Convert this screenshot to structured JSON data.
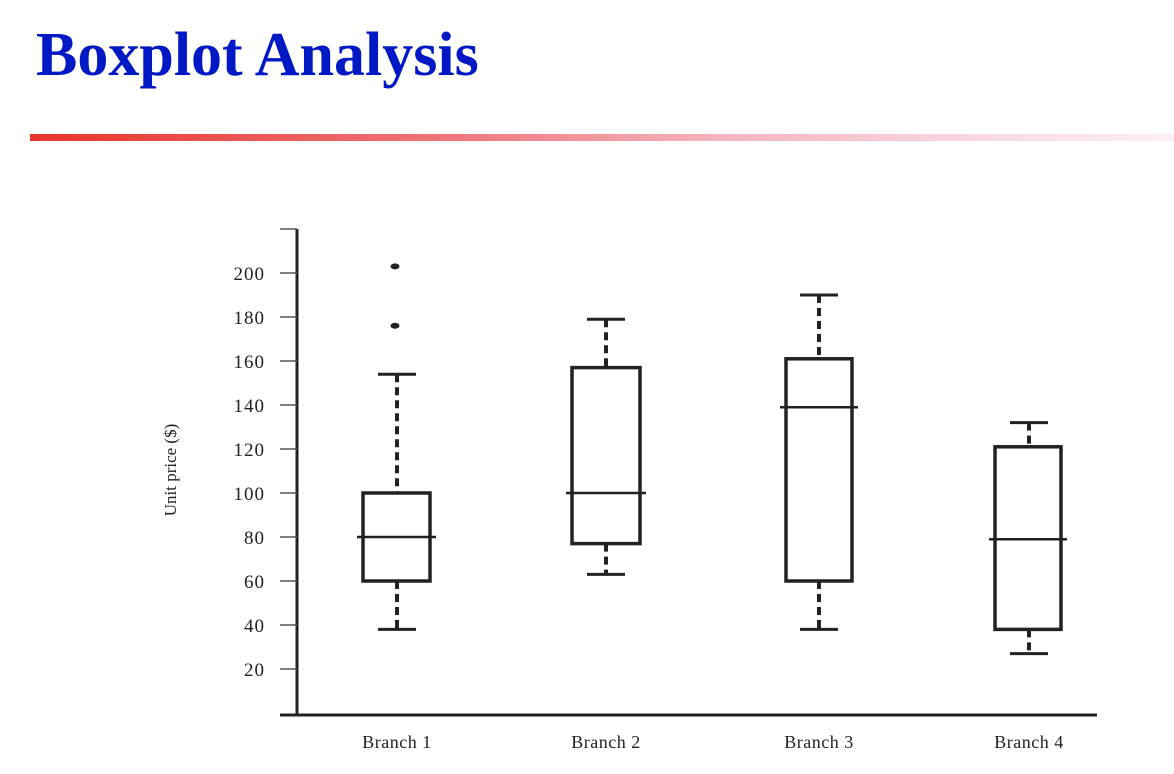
{
  "slide": {
    "title": "Boxplot Analysis",
    "title_color": "#0019c4",
    "rule_colors": [
      "#e8352b",
      "#fdeef5"
    ]
  },
  "chart_data": {
    "type": "boxplot",
    "title": "",
    "xlabel": "",
    "ylabel": "Unit price ($)",
    "ylim": [
      0,
      220
    ],
    "yticks": [
      20,
      40,
      60,
      80,
      100,
      120,
      140,
      160,
      180,
      200
    ],
    "grid": false,
    "categories": [
      "Branch 1",
      "Branch 2",
      "Branch 3",
      "Branch 4"
    ],
    "series": [
      {
        "name": "Branch 1",
        "whisker_low": 38,
        "q1": 60,
        "median": 80,
        "q3": 100,
        "whisker_high": 154,
        "outliers": [
          176,
          203
        ]
      },
      {
        "name": "Branch 2",
        "whisker_low": 63,
        "q1": 77,
        "median": 100,
        "q3": 157,
        "whisker_high": 179,
        "outliers": []
      },
      {
        "name": "Branch 3",
        "whisker_low": 38,
        "q1": 60,
        "median": 139,
        "q3": 161,
        "whisker_high": 190,
        "outliers": []
      },
      {
        "name": "Branch 4",
        "whisker_low": 27,
        "q1": 38,
        "median": 79,
        "q3": 121,
        "whisker_high": 132,
        "outliers": []
      }
    ]
  }
}
